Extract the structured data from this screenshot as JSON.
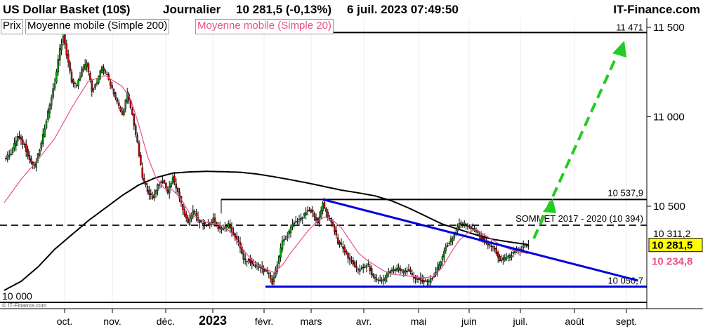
{
  "header": {
    "title": "US Dollar Basket (10$)",
    "period": "Journalier",
    "quote": "10 281,5 (-0,13%)",
    "datetime": "6 juil. 2023 07:49:50",
    "brand": "IT-Finance.com"
  },
  "legend": {
    "price": "Prix",
    "ma200": "Moyenne mobile (Simple 200)",
    "ma20": "Moyenne mobile (Simple 20)"
  },
  "watermark": "© IT-Finance.com",
  "colors": {
    "up": "#00aa00",
    "down": "#dd0000",
    "ma20": "#e8508c",
    "ma200": "#000000",
    "trend": "#0000dd",
    "arrow": "#22cc22",
    "last_price_box": "#ffff00"
  },
  "chart_data": {
    "type": "candlestick",
    "ylim": [
      9900,
      11600
    ],
    "y_ticks": [
      "11 500",
      "11 000",
      "10 500"
    ],
    "y_tick_values": [
      11500,
      11000,
      10500
    ],
    "x_labels": [
      "oct.",
      "nov.",
      "déc.",
      "2023",
      "févr.",
      "mars",
      "avr.",
      "mai",
      "juin",
      "juil.",
      "août",
      "sept."
    ],
    "price_series": {
      "name": "Prix",
      "anchors": [
        [
          0,
          10760
        ],
        [
          4,
          10800
        ],
        [
          8,
          10890
        ],
        [
          12,
          10840
        ],
        [
          15,
          10760
        ],
        [
          18,
          10720
        ],
        [
          22,
          10850
        ],
        [
          26,
          11030
        ],
        [
          30,
          11190
        ],
        [
          33,
          11380
        ],
        [
          35,
          11450
        ],
        [
          38,
          11300
        ],
        [
          40,
          11200
        ],
        [
          43,
          11170
        ],
        [
          46,
          11260
        ],
        [
          49,
          11300
        ],
        [
          52,
          11150
        ],
        [
          55,
          11190
        ],
        [
          58,
          11280
        ],
        [
          61,
          11230
        ],
        [
          64,
          11160
        ],
        [
          67,
          11080
        ],
        [
          70,
          11010
        ],
        [
          73,
          11130
        ],
        [
          76,
          11010
        ],
        [
          79,
          10850
        ],
        [
          82,
          10660
        ],
        [
          85,
          10590
        ],
        [
          88,
          10540
        ],
        [
          91,
          10620
        ],
        [
          94,
          10640
        ],
        [
          97,
          10580
        ],
        [
          100,
          10660
        ],
        [
          103,
          10580
        ],
        [
          106,
          10480
        ],
        [
          109,
          10400
        ],
        [
          112,
          10480
        ],
        [
          115,
          10420
        ],
        [
          118,
          10400
        ],
        [
          121,
          10390
        ],
        [
          124,
          10430
        ],
        [
          127,
          10380
        ],
        [
          130,
          10370
        ],
        [
          133,
          10400
        ],
        [
          136,
          10340
        ],
        [
          139,
          10300
        ],
        [
          142,
          10200
        ],
        [
          145,
          10200
        ],
        [
          148,
          10160
        ],
        [
          151,
          10170
        ],
        [
          154,
          10140
        ],
        [
          157,
          10120
        ],
        [
          159,
          10070
        ],
        [
          162,
          10180
        ],
        [
          165,
          10300
        ],
        [
          168,
          10340
        ],
        [
          171,
          10400
        ],
        [
          174,
          10420
        ],
        [
          177,
          10440
        ],
        [
          180,
          10480
        ],
        [
          183,
          10470
        ],
        [
          186,
          10400
        ],
        [
          189,
          10520
        ],
        [
          192,
          10440
        ],
        [
          195,
          10390
        ],
        [
          198,
          10300
        ],
        [
          201,
          10270
        ],
        [
          204,
          10210
        ],
        [
          207,
          10180
        ],
        [
          210,
          10140
        ],
        [
          213,
          10160
        ],
        [
          216,
          10170
        ],
        [
          219,
          10100
        ],
        [
          222,
          10080
        ],
        [
          225,
          10090
        ],
        [
          228,
          10130
        ],
        [
          231,
          10140
        ],
        [
          234,
          10150
        ],
        [
          237,
          10130
        ],
        [
          240,
          10140
        ],
        [
          243,
          10100
        ],
        [
          246,
          10090
        ],
        [
          249,
          10080
        ],
        [
          252,
          10080
        ],
        [
          255,
          10110
        ],
        [
          258,
          10170
        ],
        [
          261,
          10250
        ],
        [
          264,
          10300
        ],
        [
          267,
          10340
        ],
        [
          270,
          10400
        ],
        [
          273,
          10400
        ],
        [
          276,
          10380
        ],
        [
          279,
          10370
        ],
        [
          282,
          10340
        ],
        [
          285,
          10300
        ],
        [
          288,
          10280
        ],
        [
          291,
          10260
        ],
        [
          294,
          10200
        ],
        [
          297,
          10210
        ],
        [
          300,
          10220
        ],
        [
          303,
          10250
        ],
        [
          306,
          10260
        ],
        [
          309,
          10280
        ],
        [
          311,
          10282
        ]
      ]
    },
    "ma20_anchors": [
      [
        0,
        10520
      ],
      [
        10,
        10650
      ],
      [
        20,
        10760
      ],
      [
        30,
        10880
      ],
      [
        40,
        11050
      ],
      [
        50,
        11200
      ],
      [
        60,
        11230
      ],
      [
        70,
        11170
      ],
      [
        75,
        11100
      ],
      [
        80,
        10950
      ],
      [
        85,
        10780
      ],
      [
        90,
        10660
      ],
      [
        95,
        10600
      ],
      [
        100,
        10590
      ],
      [
        105,
        10540
      ],
      [
        110,
        10460
      ],
      [
        115,
        10430
      ],
      [
        120,
        10410
      ],
      [
        125,
        10400
      ],
      [
        130,
        10390
      ],
      [
        135,
        10350
      ],
      [
        140,
        10280
      ],
      [
        145,
        10220
      ],
      [
        150,
        10170
      ],
      [
        155,
        10150
      ],
      [
        160,
        10130
      ],
      [
        165,
        10170
      ],
      [
        170,
        10240
      ],
      [
        175,
        10300
      ],
      [
        180,
        10360
      ],
      [
        185,
        10410
      ],
      [
        190,
        10440
      ],
      [
        195,
        10420
      ],
      [
        200,
        10380
      ],
      [
        205,
        10310
      ],
      [
        210,
        10240
      ],
      [
        215,
        10200
      ],
      [
        220,
        10170
      ],
      [
        225,
        10140
      ],
      [
        230,
        10120
      ],
      [
        240,
        10110
      ],
      [
        250,
        10100
      ],
      [
        255,
        10110
      ],
      [
        260,
        10160
      ],
      [
        265,
        10240
      ],
      [
        270,
        10310
      ],
      [
        275,
        10350
      ],
      [
        280,
        10370
      ],
      [
        285,
        10340
      ],
      [
        290,
        10310
      ],
      [
        295,
        10280
      ],
      [
        300,
        10260
      ],
      [
        305,
        10245
      ],
      [
        311,
        10235
      ]
    ],
    "ma200_anchors": [
      [
        0,
        10030
      ],
      [
        10,
        10080
      ],
      [
        20,
        10160
      ],
      [
        30,
        10260
      ],
      [
        40,
        10340
      ],
      [
        50,
        10420
      ],
      [
        60,
        10490
      ],
      [
        70,
        10560
      ],
      [
        80,
        10620
      ],
      [
        90,
        10660
      ],
      [
        100,
        10685
      ],
      [
        110,
        10692
      ],
      [
        120,
        10695
      ],
      [
        130,
        10693
      ],
      [
        140,
        10690
      ],
      [
        150,
        10680
      ],
      [
        160,
        10665
      ],
      [
        170,
        10648
      ],
      [
        180,
        10630
      ],
      [
        190,
        10610
      ],
      [
        200,
        10590
      ],
      [
        210,
        10575
      ],
      [
        220,
        10558
      ],
      [
        230,
        10530
      ],
      [
        240,
        10490
      ],
      [
        250,
        10445
      ],
      [
        260,
        10400
      ],
      [
        270,
        10370
      ],
      [
        280,
        10340
      ],
      [
        290,
        10315
      ],
      [
        300,
        10300
      ],
      [
        311,
        10285
      ]
    ],
    "levels": [
      {
        "label": "11 471",
        "value": 11471
      },
      {
        "label": "10 537,9",
        "value": 10537.9
      },
      {
        "label": "SOMMET 2017 - 2020 (10 394)",
        "value": 10394
      },
      {
        "label": "10 050,7",
        "value": 10050.7
      },
      {
        "label": "10 000",
        "value": 10000
      }
    ],
    "trendline": {
      "from": [
        189,
        10537.9
      ],
      "to": [
        376,
        10300
      ]
    },
    "support_line": {
      "from": [
        156,
        10050.7
      ],
      "to": [
        376,
        10050.7
      ]
    },
    "target_arrow": {
      "from": [
        311,
        10300
      ],
      "to": [
        362,
        11460
      ]
    },
    "right_labels": [
      {
        "label": "10 311,2",
        "value": 10311.2
      },
      {
        "label": "10 281,5",
        "value": 10281.5
      },
      {
        "label": "10 234,8",
        "value": 10234.8
      }
    ]
  }
}
